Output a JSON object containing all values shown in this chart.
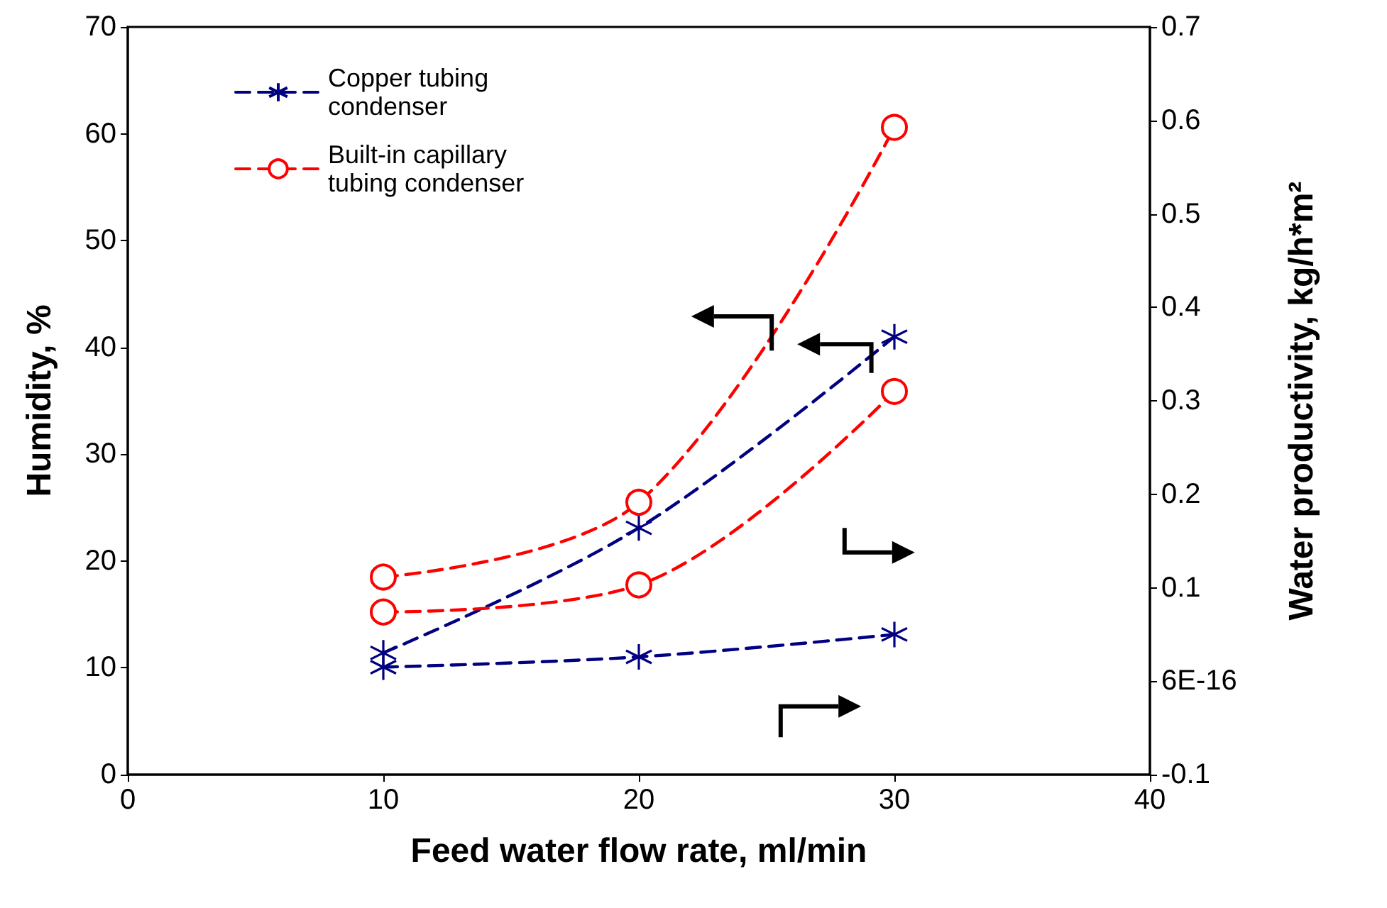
{
  "chart_data": {
    "type": "line",
    "xlabel": "Feed water flow rate, ml/min",
    "ylabel": "Humidity, %",
    "y2label": "Water productivity, kg/h*m²",
    "x": [
      10,
      20,
      30
    ],
    "series": [
      {
        "name": "Copper tubing condenser",
        "color": "#000080",
        "marker": "cross",
        "values": [
          11.4,
          23.1,
          41.0
        ]
      },
      {
        "color": "#000080",
        "marker": "cross",
        "axis": "y2",
        "values": [
          0.015,
          0.026,
          0.05
        ]
      },
      {
        "name": "Built-in capillary tubing condenser",
        "color": "#ff0000",
        "marker": "circle",
        "values": [
          18.5,
          25.5,
          60.6
        ]
      },
      {
        "color": "#ff0000",
        "marker": "circle",
        "axis": "y2",
        "values": [
          0.074,
          0.103,
          0.31
        ]
      }
    ],
    "xlim": [
      0,
      40
    ],
    "xticks": [
      0,
      10,
      20,
      30,
      40
    ],
    "ylim": [
      0,
      70
    ],
    "yticks": [
      0,
      10,
      20,
      30,
      40,
      50,
      60,
      70
    ],
    "y2lim": [
      -0.1,
      0.7
    ],
    "y2ticks": [
      -0.1,
      {
        "value": 0,
        "label": "6E-16"
      },
      0.1,
      0.2,
      0.3,
      0.4,
      0.5,
      0.6,
      0.7
    ],
    "line_style": "dashed",
    "grid": false,
    "legend": "top left"
  }
}
